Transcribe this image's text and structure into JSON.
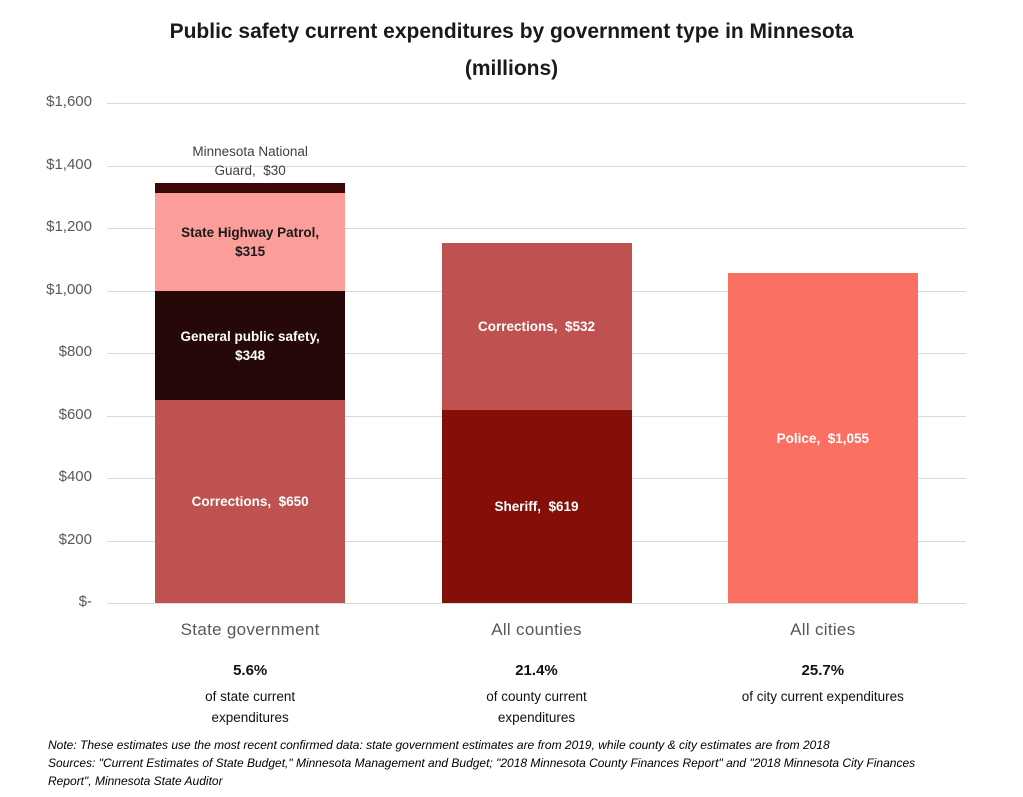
{
  "chart_data": {
    "type": "bar",
    "stacked": true,
    "title": "Public safety current expenditures by government type in Minnesota (millions)",
    "unit": "millions USD",
    "ylim": [
      0,
      1600
    ],
    "grid": true,
    "y_ticks": [
      {
        "value": 1600,
        "label": "$1,600"
      },
      {
        "value": 1400,
        "label": "$1,400"
      },
      {
        "value": 1200,
        "label": "$1,200"
      },
      {
        "value": 1000,
        "label": "$1,000"
      },
      {
        "value": 800,
        "label": "$800"
      },
      {
        "value": 600,
        "label": "$600"
      },
      {
        "value": 400,
        "label": "$400"
      },
      {
        "value": 200,
        "label": "$200"
      },
      {
        "value": 0,
        "label": "$-"
      }
    ],
    "categories": [
      "State government",
      "All counties",
      "All cities"
    ],
    "bars": [
      {
        "category": "State government",
        "total": 1343,
        "segments": [
          {
            "name": "Corrections",
            "value": 650,
            "label": "Corrections,  $650",
            "color": "#bf5150",
            "label_color": "#ffffff",
            "label_position": "inside"
          },
          {
            "name": "General public safety",
            "value": 348,
            "label": "General public safety,  $348",
            "color": "#260808",
            "label_color": "#ffffff",
            "label_position": "inside"
          },
          {
            "name": "State Highway Patrol",
            "value": 315,
            "label": "State Highway Patrol,  $315",
            "color": "#fb9d99",
            "label_color": "#1a1a1a",
            "label_position": "inside"
          },
          {
            "name": "Minnesota National Guard",
            "value": 30,
            "label": "Minnesota National Guard,  $30",
            "color": "#3f0708",
            "label_color": "#404040",
            "label_position": "above"
          }
        ],
        "annotation": {
          "pct": "5.6%",
          "desc": "of state current expenditures"
        }
      },
      {
        "category": "All counties",
        "total": 1151,
        "segments": [
          {
            "name": "Sheriff",
            "value": 619,
            "label": "Sheriff,  $619",
            "color": "#830f08",
            "label_color": "#ffffff",
            "label_position": "inside"
          },
          {
            "name": "Corrections",
            "value": 532,
            "label": "Corrections,  $532",
            "color": "#bf5150",
            "label_color": "#ffffff",
            "label_position": "inside"
          }
        ],
        "annotation": {
          "pct": "21.4%",
          "desc": "of county current expenditures"
        }
      },
      {
        "category": "All cities",
        "total": 1055,
        "segments": [
          {
            "name": "Police",
            "value": 1055,
            "label": "Police,  $1,055",
            "color": "#fb6f63",
            "label_color": "#ffffff",
            "label_position": "inside"
          }
        ],
        "annotation": {
          "pct": "25.7%",
          "desc": "of city current expenditures"
        }
      }
    ]
  },
  "notes": {
    "note": "Note: These estimates use the most recent confirmed data: state government estimates are from 2019, while county & city estimates are from 2018",
    "sources": "Sources: \"Current Estimates of State Budget,\" Minnesota Management and Budget; \"2018 Minnesota County Finances Report\" and \"2018 Minnesota City Finances Report\", Minnesota State Auditor"
  }
}
